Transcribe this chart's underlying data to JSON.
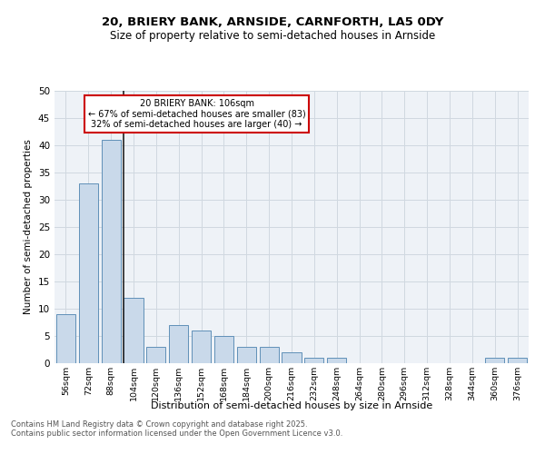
{
  "title1": "20, BRIERY BANK, ARNSIDE, CARNFORTH, LA5 0DY",
  "title2": "Size of property relative to semi-detached houses in Arnside",
  "xlabel": "Distribution of semi-detached houses by size in Arnside",
  "ylabel": "Number of semi-detached properties",
  "bar_color": "#c9d9ea",
  "bar_edge_color": "#6090b8",
  "categories": [
    "56sqm",
    "72sqm",
    "88sqm",
    "104sqm",
    "120sqm",
    "136sqm",
    "152sqm",
    "168sqm",
    "184sqm",
    "200sqm",
    "216sqm",
    "232sqm",
    "248sqm",
    "264sqm",
    "280sqm",
    "296sqm",
    "312sqm",
    "328sqm",
    "344sqm",
    "360sqm",
    "376sqm"
  ],
  "values": [
    9,
    33,
    41,
    12,
    3,
    7,
    6,
    5,
    3,
    3,
    2,
    1,
    1,
    0,
    0,
    0,
    0,
    0,
    0,
    1,
    1
  ],
  "highlight_index": 3,
  "highlight_line_color": "#222222",
  "annotation_title": "20 BRIERY BANK: 106sqm",
  "annotation_line1": "← 67% of semi-detached houses are smaller (83)",
  "annotation_line2": "32% of semi-detached houses are larger (40) →",
  "annotation_box_facecolor": "#ffffff",
  "annotation_box_edgecolor": "#cc0000",
  "footer1": "Contains HM Land Registry data © Crown copyright and database right 2025.",
  "footer2": "Contains public sector information licensed under the Open Government Licence v3.0.",
  "ylim": [
    0,
    50
  ],
  "yticks": [
    0,
    5,
    10,
    15,
    20,
    25,
    30,
    35,
    40,
    45,
    50
  ],
  "grid_color": "#d0d8e0",
  "bg_color": "#eef2f7"
}
